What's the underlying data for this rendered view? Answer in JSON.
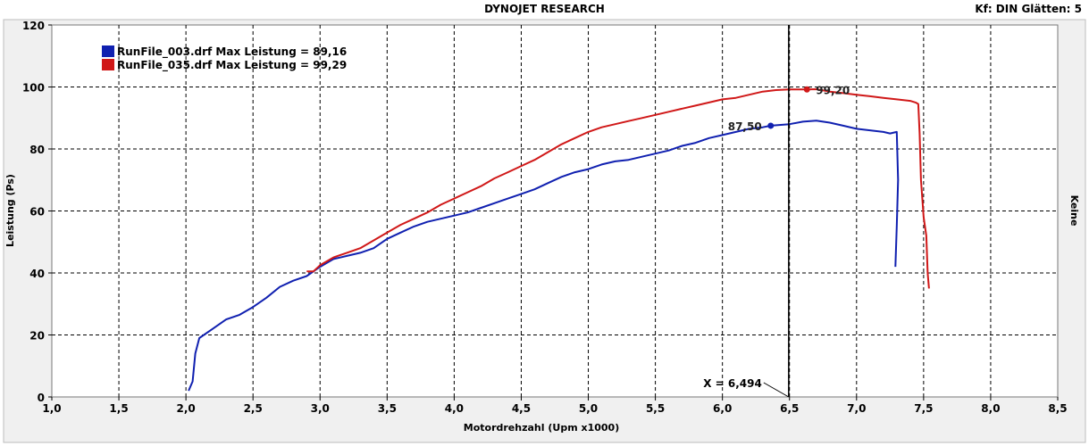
{
  "header": {
    "title": "DYNOJET RESEARCH",
    "settings": "Kf: DIN  Glätten: 5"
  },
  "right_axis_label": "Keine",
  "colors": {
    "series_blue": "#1020b0",
    "series_red": "#d01818",
    "grid": "#000000",
    "plot_bg": "#ffffff",
    "frame": "#e8e8e8"
  },
  "cursor": {
    "label": "X = 6,494",
    "x": 6.494
  },
  "chart_data": {
    "type": "line",
    "title": "DYNOJET RESEARCH",
    "xlabel": "Motordrehzahl (Upm x1000)",
    "ylabel": "Leistung (Ps)",
    "xlim": [
      1.0,
      8.5
    ],
    "ylim": [
      0,
      120
    ],
    "xticks": [
      "1,0",
      "1,5",
      "2,0",
      "2,5",
      "3,0",
      "3,5",
      "4,0",
      "4,5",
      "5,0",
      "5,5",
      "6,0",
      "6,5",
      "7,0",
      "7,5",
      "8,0",
      "8,5"
    ],
    "yticks": [
      "0",
      "20",
      "40",
      "60",
      "80",
      "100",
      "120"
    ],
    "grid": true,
    "legend_position": "top-left",
    "series": [
      {
        "name": "RunFile_003.drf Max Leistung = 89,16",
        "color": "#1020b0",
        "marker": {
          "x": 6.36,
          "y": 87.5,
          "label": "87,50"
        },
        "points": [
          [
            2.02,
            2
          ],
          [
            2.05,
            5
          ],
          [
            2.07,
            14
          ],
          [
            2.1,
            19
          ],
          [
            2.2,
            22
          ],
          [
            2.3,
            25
          ],
          [
            2.4,
            26.5
          ],
          [
            2.5,
            29
          ],
          [
            2.6,
            32
          ],
          [
            2.7,
            35.5
          ],
          [
            2.8,
            37.5
          ],
          [
            2.9,
            39
          ],
          [
            3.0,
            42
          ],
          [
            3.1,
            44.5
          ],
          [
            3.2,
            45.5
          ],
          [
            3.3,
            46.5
          ],
          [
            3.4,
            48
          ],
          [
            3.5,
            51
          ],
          [
            3.6,
            53
          ],
          [
            3.7,
            55
          ],
          [
            3.8,
            56.5
          ],
          [
            3.9,
            57.5
          ],
          [
            4.0,
            58.5
          ],
          [
            4.1,
            59.5
          ],
          [
            4.2,
            61
          ],
          [
            4.3,
            62.5
          ],
          [
            4.4,
            64
          ],
          [
            4.5,
            65.5
          ],
          [
            4.6,
            67
          ],
          [
            4.7,
            69
          ],
          [
            4.8,
            71
          ],
          [
            4.9,
            72.5
          ],
          [
            5.0,
            73.5
          ],
          [
            5.1,
            75
          ],
          [
            5.2,
            76
          ],
          [
            5.3,
            76.5
          ],
          [
            5.4,
            77.5
          ],
          [
            5.5,
            78.5
          ],
          [
            5.6,
            79.5
          ],
          [
            5.7,
            81
          ],
          [
            5.8,
            82
          ],
          [
            5.9,
            83.5
          ],
          [
            6.0,
            84.5
          ],
          [
            6.1,
            85.5
          ],
          [
            6.2,
            86.5
          ],
          [
            6.3,
            87
          ],
          [
            6.36,
            87.5
          ],
          [
            6.5,
            88
          ],
          [
            6.6,
            88.8
          ],
          [
            6.7,
            89.16
          ],
          [
            6.8,
            88.5
          ],
          [
            6.9,
            87.5
          ],
          [
            7.0,
            86.5
          ],
          [
            7.1,
            86
          ],
          [
            7.2,
            85.5
          ],
          [
            7.25,
            85
          ],
          [
            7.3,
            85.5
          ],
          [
            7.31,
            70
          ],
          [
            7.3,
            55
          ],
          [
            7.29,
            42
          ]
        ]
      },
      {
        "name": "RunFile_035.drf Max Leistung = 99,29",
        "color": "#d01818",
        "marker": {
          "x": 6.63,
          "y": 99.2,
          "label": "99,20"
        },
        "points": [
          [
            2.9,
            40.5
          ],
          [
            2.95,
            40.5
          ],
          [
            3.0,
            42.5
          ],
          [
            3.1,
            45
          ],
          [
            3.2,
            46.5
          ],
          [
            3.3,
            48
          ],
          [
            3.4,
            50.5
          ],
          [
            3.5,
            53
          ],
          [
            3.6,
            55.5
          ],
          [
            3.7,
            57.5
          ],
          [
            3.8,
            59.5
          ],
          [
            3.9,
            62
          ],
          [
            4.0,
            64
          ],
          [
            4.1,
            66
          ],
          [
            4.2,
            68
          ],
          [
            4.3,
            70.5
          ],
          [
            4.4,
            72.5
          ],
          [
            4.5,
            74.5
          ],
          [
            4.6,
            76.5
          ],
          [
            4.7,
            79
          ],
          [
            4.8,
            81.5
          ],
          [
            4.9,
            83.5
          ],
          [
            5.0,
            85.5
          ],
          [
            5.1,
            87
          ],
          [
            5.2,
            88
          ],
          [
            5.3,
            89
          ],
          [
            5.4,
            90
          ],
          [
            5.5,
            91
          ],
          [
            5.6,
            92
          ],
          [
            5.7,
            93
          ],
          [
            5.8,
            94
          ],
          [
            5.9,
            95
          ],
          [
            6.0,
            96
          ],
          [
            6.1,
            96.5
          ],
          [
            6.2,
            97.5
          ],
          [
            6.3,
            98.5
          ],
          [
            6.4,
            99
          ],
          [
            6.5,
            99.2
          ],
          [
            6.63,
            99.2
          ],
          [
            6.7,
            99.29
          ],
          [
            6.8,
            98.5
          ],
          [
            6.9,
            98
          ],
          [
            7.0,
            97.5
          ],
          [
            7.1,
            97
          ],
          [
            7.2,
            96.5
          ],
          [
            7.3,
            96
          ],
          [
            7.4,
            95.5
          ],
          [
            7.44,
            95
          ],
          [
            7.46,
            94.5
          ],
          [
            7.47,
            85
          ],
          [
            7.48,
            70
          ],
          [
            7.5,
            58
          ],
          [
            7.52,
            52
          ],
          [
            7.53,
            40
          ],
          [
            7.54,
            35
          ]
        ]
      }
    ]
  }
}
